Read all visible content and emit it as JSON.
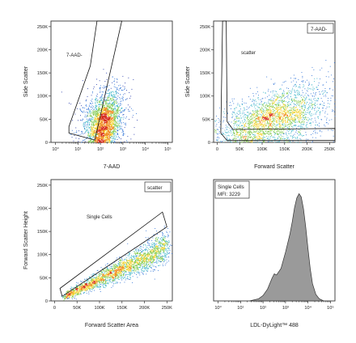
{
  "chart_data": [
    {
      "id": "p1",
      "type": "scatter",
      "title": "",
      "xlabel": "7-AAD",
      "ylabel": "Side Scatter",
      "xscale": "log",
      "x_ticks": [
        "10⁰",
        "10¹",
        "10²",
        "10³",
        "10⁴",
        "10⁵"
      ],
      "x_tick_values": [
        0,
        1,
        2,
        3,
        4,
        5
      ],
      "y_ticks": [
        "0",
        "50K",
        "100K",
        "150K",
        "200K",
        "250K"
      ],
      "y_tick_values": [
        0,
        50,
        100,
        150,
        200,
        250
      ],
      "xlim": [
        -0.2,
        5.2
      ],
      "ylim": [
        0,
        262
      ],
      "gate": {
        "label": "7-AAD-",
        "vertices": [
          [
            0.6,
            20
          ],
          [
            1.75,
            5
          ],
          [
            2.95,
            262
          ],
          [
            1.85,
            262
          ],
          [
            1.55,
            165
          ],
          [
            0.6,
            34
          ]
        ]
      },
      "population": {
        "center_x": 2.15,
        "center_y": 35,
        "spread_x": 0.35,
        "spread_y": 30,
        "density": "high"
      }
    },
    {
      "id": "p2",
      "type": "scatter",
      "title": "",
      "xlabel": "Forward Scatter",
      "ylabel": "Side Scatter",
      "x_ticks": [
        "0",
        "50K",
        "100K",
        "150K",
        "200K",
        "250K"
      ],
      "x_tick_values": [
        0,
        50,
        100,
        150,
        200,
        250
      ],
      "y_ticks": [
        "0",
        "50K",
        "100K",
        "150K",
        "200K",
        "250K"
      ],
      "y_tick_values": [
        0,
        50,
        100,
        150,
        200,
        250
      ],
      "xlim": [
        -8,
        262
      ],
      "ylim": [
        0,
        262
      ],
      "parent_gate_label": "7-AAD-",
      "gate": {
        "label": "scatter",
        "vertices": [
          [
            12,
            262
          ],
          [
            8,
            20
          ],
          [
            22,
            4
          ],
          [
            262,
            4
          ],
          [
            262,
            30
          ],
          [
            35,
            28
          ],
          [
            22,
            45
          ],
          [
            20,
            262
          ]
        ]
      },
      "population": {
        "center_x": 80,
        "center_y": 40,
        "spread_x": 55,
        "spread_y": 45,
        "density": "high"
      }
    },
    {
      "id": "p3",
      "type": "scatter",
      "title": "",
      "xlabel": "Forward Scatter Area",
      "ylabel": "Forward Scatter Height",
      "x_ticks": [
        "0",
        "50K",
        "100K",
        "150K",
        "200K",
        "250K"
      ],
      "x_tick_values": [
        0,
        50,
        100,
        150,
        200,
        250
      ],
      "y_ticks": [
        "0",
        "50K",
        "100K",
        "150K",
        "200K",
        "250K"
      ],
      "y_tick_values": [
        0,
        50,
        100,
        150,
        200,
        250
      ],
      "xlim": [
        -8,
        262
      ],
      "ylim": [
        0,
        262
      ],
      "parent_gate_label": "scatter",
      "gate": {
        "label": "Single Cells",
        "vertices": [
          [
            12,
            27
          ],
          [
            240,
            192
          ],
          [
            250,
            160
          ],
          [
            17,
            10
          ]
        ]
      },
      "population": {
        "diagonal": true,
        "slope": 0.47,
        "start_x": 20,
        "end_x": 250,
        "density": "high"
      }
    },
    {
      "id": "p4",
      "type": "area",
      "title": "",
      "xlabel": "LDL-DyLight™ 488",
      "ylabel": "",
      "xscale": "log",
      "x_ticks": [
        "10⁰",
        "10¹",
        "10²",
        "10³",
        "10⁴",
        "10⁵"
      ],
      "x_tick_values": [
        0,
        1,
        2,
        3,
        4,
        5
      ],
      "xlim": [
        -0.2,
        5.2
      ],
      "ylim": [
        0,
        1.12
      ],
      "legend": [
        "Single Cells",
        "MFI: 3229"
      ],
      "mfi": 3229,
      "histogram": {
        "x": [
          1.4,
          1.8,
          2.0,
          2.2,
          2.4,
          2.5,
          2.6,
          2.8,
          3.0,
          3.2,
          3.3,
          3.4,
          3.5,
          3.6,
          3.7,
          3.8,
          3.9,
          4.0,
          4.1,
          4.2,
          4.35,
          4.5,
          4.7
        ],
        "y": [
          0.0,
          0.02,
          0.05,
          0.11,
          0.21,
          0.25,
          0.24,
          0.3,
          0.45,
          0.62,
          0.73,
          0.86,
          0.95,
          0.99,
          0.96,
          0.85,
          0.68,
          0.48,
          0.3,
          0.16,
          0.06,
          0.02,
          0.0
        ]
      },
      "fill_color": "#9a9a9a"
    }
  ],
  "density_colors": [
    "#1a2fa8",
    "#2a6fd6",
    "#3fb6c8",
    "#7ec94a",
    "#f2d22e",
    "#f08b1e",
    "#d6281b"
  ]
}
